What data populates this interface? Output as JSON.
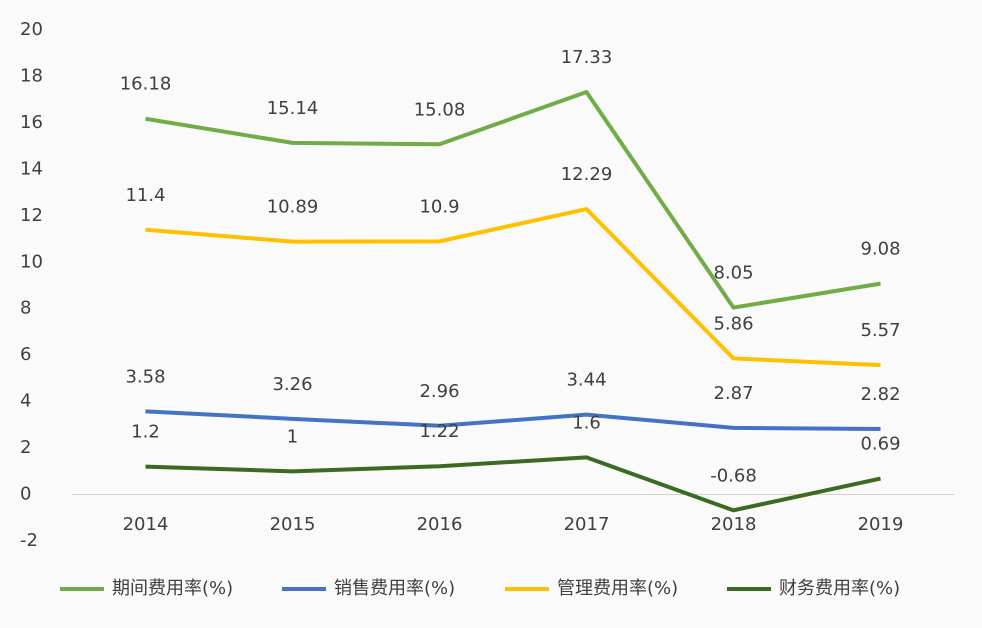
{
  "chart_data": {
    "type": "line",
    "categories": [
      "2014",
      "2015",
      "2016",
      "2017",
      "2018",
      "2019"
    ],
    "series": [
      {
        "name": "期间费用率(%)",
        "color": "#70ad47",
        "values": [
          16.18,
          15.14,
          15.08,
          17.33,
          8.05,
          9.08
        ]
      },
      {
        "name": "销售费用率(%)",
        "color": "#4472c4",
        "values": [
          3.58,
          3.26,
          2.96,
          3.44,
          2.87,
          2.82
        ]
      },
      {
        "name": "管理费用率(%)",
        "color": "#ffc000",
        "values": [
          11.4,
          10.89,
          10.9,
          12.29,
          5.86,
          5.57
        ]
      },
      {
        "name": "财务费用率(%)",
        "color": "#3b6b22",
        "values": [
          1.2,
          1,
          1.22,
          1.6,
          -0.68,
          0.69
        ]
      }
    ],
    "ylim": [
      -2,
      20
    ],
    "yticks": [
      -2,
      0,
      2,
      4,
      6,
      8,
      10,
      12,
      14,
      16,
      18,
      20
    ],
    "grid": false,
    "legend": "bottom"
  }
}
